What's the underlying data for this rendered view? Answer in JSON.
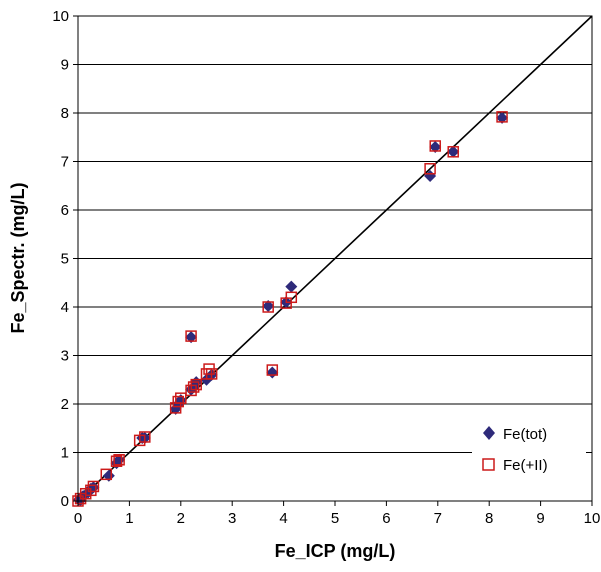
{
  "chart_data": {
    "type": "scatter",
    "title": "",
    "xlabel": "Fe_ICP (mg/L)",
    "ylabel": "Fe_Spectr. (mg/L)",
    "xlim": [
      0,
      10
    ],
    "ylim": [
      0,
      10
    ],
    "x_ticks": [
      "0",
      "1",
      "2",
      "3",
      "4",
      "5",
      "6",
      "7",
      "8",
      "9",
      "10"
    ],
    "y_ticks": [
      "0",
      "1",
      "2",
      "3",
      "4",
      "5",
      "6",
      "7",
      "8",
      "9",
      "10"
    ],
    "grid": "horizontal",
    "reference_line": {
      "type": "y=x",
      "from": [
        0,
        0
      ],
      "to": [
        10,
        10
      ]
    },
    "legend_position": "bottom-right",
    "series": [
      {
        "name": "Fe(tot)",
        "marker": "filled-diamond",
        "color": "#2E2A7A",
        "points": [
          [
            0.02,
            0.03
          ],
          [
            0.05,
            0.02
          ],
          [
            0.1,
            0.1
          ],
          [
            0.2,
            0.18
          ],
          [
            0.25,
            0.25
          ],
          [
            0.3,
            0.28
          ],
          [
            0.6,
            0.52
          ],
          [
            0.75,
            0.78
          ],
          [
            0.8,
            0.85
          ],
          [
            1.25,
            1.3
          ],
          [
            1.3,
            1.3
          ],
          [
            1.9,
            1.9
          ],
          [
            1.95,
            2.0
          ],
          [
            2.0,
            2.08
          ],
          [
            2.2,
            2.3
          ],
          [
            2.25,
            2.35
          ],
          [
            2.3,
            2.45
          ],
          [
            2.5,
            2.5
          ],
          [
            2.6,
            2.6
          ],
          [
            2.2,
            3.38
          ],
          [
            3.7,
            4.02
          ],
          [
            3.78,
            2.65
          ],
          [
            4.05,
            4.1
          ],
          [
            4.15,
            4.42
          ],
          [
            6.85,
            6.7
          ],
          [
            6.95,
            7.3
          ],
          [
            7.3,
            7.2
          ],
          [
            8.25,
            7.9
          ]
        ]
      },
      {
        "name": "Fe(+II)",
        "marker": "open-square",
        "color": "#CC1A1A",
        "points": [
          [
            0.0,
            0.0
          ],
          [
            0.05,
            0.05
          ],
          [
            0.15,
            0.15
          ],
          [
            0.25,
            0.22
          ],
          [
            0.3,
            0.3
          ],
          [
            0.55,
            0.55
          ],
          [
            0.75,
            0.82
          ],
          [
            0.8,
            0.85
          ],
          [
            1.2,
            1.25
          ],
          [
            1.3,
            1.32
          ],
          [
            1.9,
            1.92
          ],
          [
            1.95,
            2.05
          ],
          [
            2.0,
            2.12
          ],
          [
            2.2,
            2.28
          ],
          [
            2.25,
            2.35
          ],
          [
            2.3,
            2.4
          ],
          [
            2.5,
            2.62
          ],
          [
            2.55,
            2.72
          ],
          [
            2.6,
            2.62
          ],
          [
            2.2,
            3.4
          ],
          [
            3.7,
            4.0
          ],
          [
            3.78,
            2.7
          ],
          [
            4.05,
            4.08
          ],
          [
            4.15,
            4.2
          ],
          [
            6.85,
            6.85
          ],
          [
            6.95,
            7.32
          ],
          [
            7.3,
            7.2
          ],
          [
            8.25,
            7.92
          ]
        ]
      }
    ]
  }
}
